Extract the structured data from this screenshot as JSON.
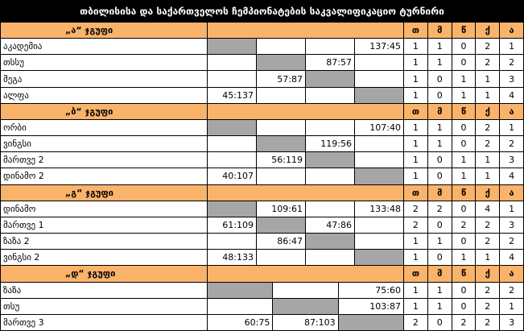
{
  "title": "თბილისისა და საქართველოს ჩემპიონატების საკვალიფიკაციო ტურნირი",
  "stat_headers": [
    "თ",
    "მ",
    "წ",
    "ქ",
    "ა"
  ],
  "groups": [
    {
      "title": "„ა“ ჯგუფი",
      "rows": [
        {
          "team": "აკადემია",
          "results": [
            null,
            null,
            null,
            "137:45"
          ],
          "stats": [
            1,
            1,
            0,
            2,
            1
          ]
        },
        {
          "team": "თსსუ",
          "results": [
            null,
            null,
            "87:57",
            null
          ],
          "stats": [
            1,
            1,
            0,
            2,
            2
          ]
        },
        {
          "team": "მეგა",
          "results": [
            null,
            "57:87",
            null,
            null
          ],
          "stats": [
            1,
            0,
            1,
            1,
            3
          ]
        },
        {
          "team": "ალფა",
          "results": [
            "45:137",
            null,
            null,
            null
          ],
          "stats": [
            1,
            0,
            1,
            1,
            4
          ]
        }
      ]
    },
    {
      "title": "„ბ“ ჯგუფი",
      "rows": [
        {
          "team": "ორბი",
          "results": [
            null,
            null,
            null,
            "107:40"
          ],
          "stats": [
            1,
            1,
            0,
            2,
            1
          ]
        },
        {
          "team": "ვინგსი",
          "results": [
            null,
            null,
            "119:56",
            null
          ],
          "stats": [
            1,
            1,
            0,
            2,
            2
          ]
        },
        {
          "team": "მართვე 2",
          "results": [
            null,
            "56:119",
            null,
            null
          ],
          "stats": [
            1,
            0,
            1,
            1,
            3
          ]
        },
        {
          "team": "დინამო 2",
          "results": [
            "40:107",
            null,
            null,
            null
          ],
          "stats": [
            1,
            0,
            1,
            1,
            4
          ]
        }
      ]
    },
    {
      "title": "„გ“ ჯგუფი",
      "rows": [
        {
          "team": "დინამო",
          "results": [
            null,
            "109:61",
            null,
            "133:48"
          ],
          "stats": [
            2,
            2,
            0,
            4,
            1
          ]
        },
        {
          "team": "მართვე 1",
          "results": [
            "61:109",
            null,
            "47:86",
            null
          ],
          "stats": [
            2,
            0,
            2,
            2,
            3
          ]
        },
        {
          "team": "ზაზა 2",
          "results": [
            null,
            "86:47",
            null,
            null
          ],
          "stats": [
            1,
            1,
            0,
            2,
            2
          ]
        },
        {
          "team": "ვინგსი 2",
          "results": [
            "48:133",
            null,
            null,
            null
          ],
          "stats": [
            1,
            0,
            1,
            1,
            4
          ]
        }
      ]
    },
    {
      "title": "„დ“ ჯგუფი",
      "rows": [
        {
          "team": "ზაზა",
          "results": [
            null,
            null,
            "75:60"
          ],
          "stats": [
            1,
            1,
            0,
            2,
            2
          ]
        },
        {
          "team": "თსუ",
          "results": [
            null,
            null,
            "103:87"
          ],
          "stats": [
            1,
            1,
            0,
            2,
            1
          ]
        },
        {
          "team": "მართვე 3",
          "results": [
            "60:75",
            "87:103",
            null
          ],
          "stats": [
            2,
            0,
            2,
            2,
            3
          ]
        }
      ]
    }
  ]
}
